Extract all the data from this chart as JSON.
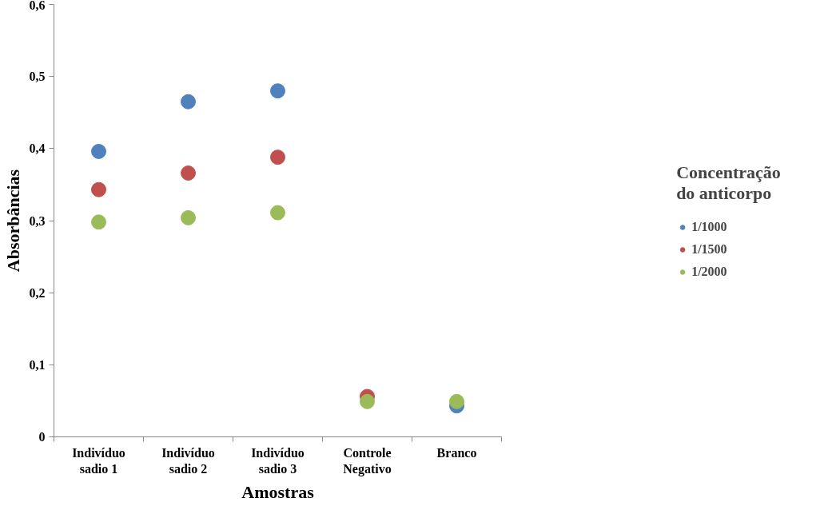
{
  "chart_data": {
    "type": "scatter",
    "xlabel": "Amostras",
    "ylabel": "Absorbâncias",
    "legend_title": "Concentração\ndo anticorpo",
    "categories": [
      "Indivíduo\nsadio 1",
      "Indivíduo\nsadio 2",
      "Indivíduo\nsadio 3",
      "Controle\nNegativo",
      "Branco"
    ],
    "series": [
      {
        "name": "1/1000",
        "color": "#4f81bd",
        "values": [
          0.396,
          0.465,
          0.48,
          null,
          0.043
        ]
      },
      {
        "name": "1/1500",
        "color": "#c0504d",
        "values": [
          0.343,
          0.366,
          0.388,
          0.056,
          null
        ]
      },
      {
        "name": "1/2000",
        "color": "#9bbb59",
        "values": [
          0.298,
          0.304,
          0.311,
          0.049,
          0.049
        ]
      }
    ],
    "ylim": [
      0,
      0.6
    ],
    "yticks": [
      {
        "value": 0,
        "label": "0"
      },
      {
        "value": 0.1,
        "label": "0,1"
      },
      {
        "value": 0.2,
        "label": "0,2"
      },
      {
        "value": 0.3,
        "label": "0,3"
      },
      {
        "value": 0.4,
        "label": "0,4"
      },
      {
        "value": 0.5,
        "label": "0,5"
      },
      {
        "value": 0.6,
        "label": "0,6"
      }
    ],
    "marker": "circle",
    "legend": "right",
    "grid": false
  }
}
